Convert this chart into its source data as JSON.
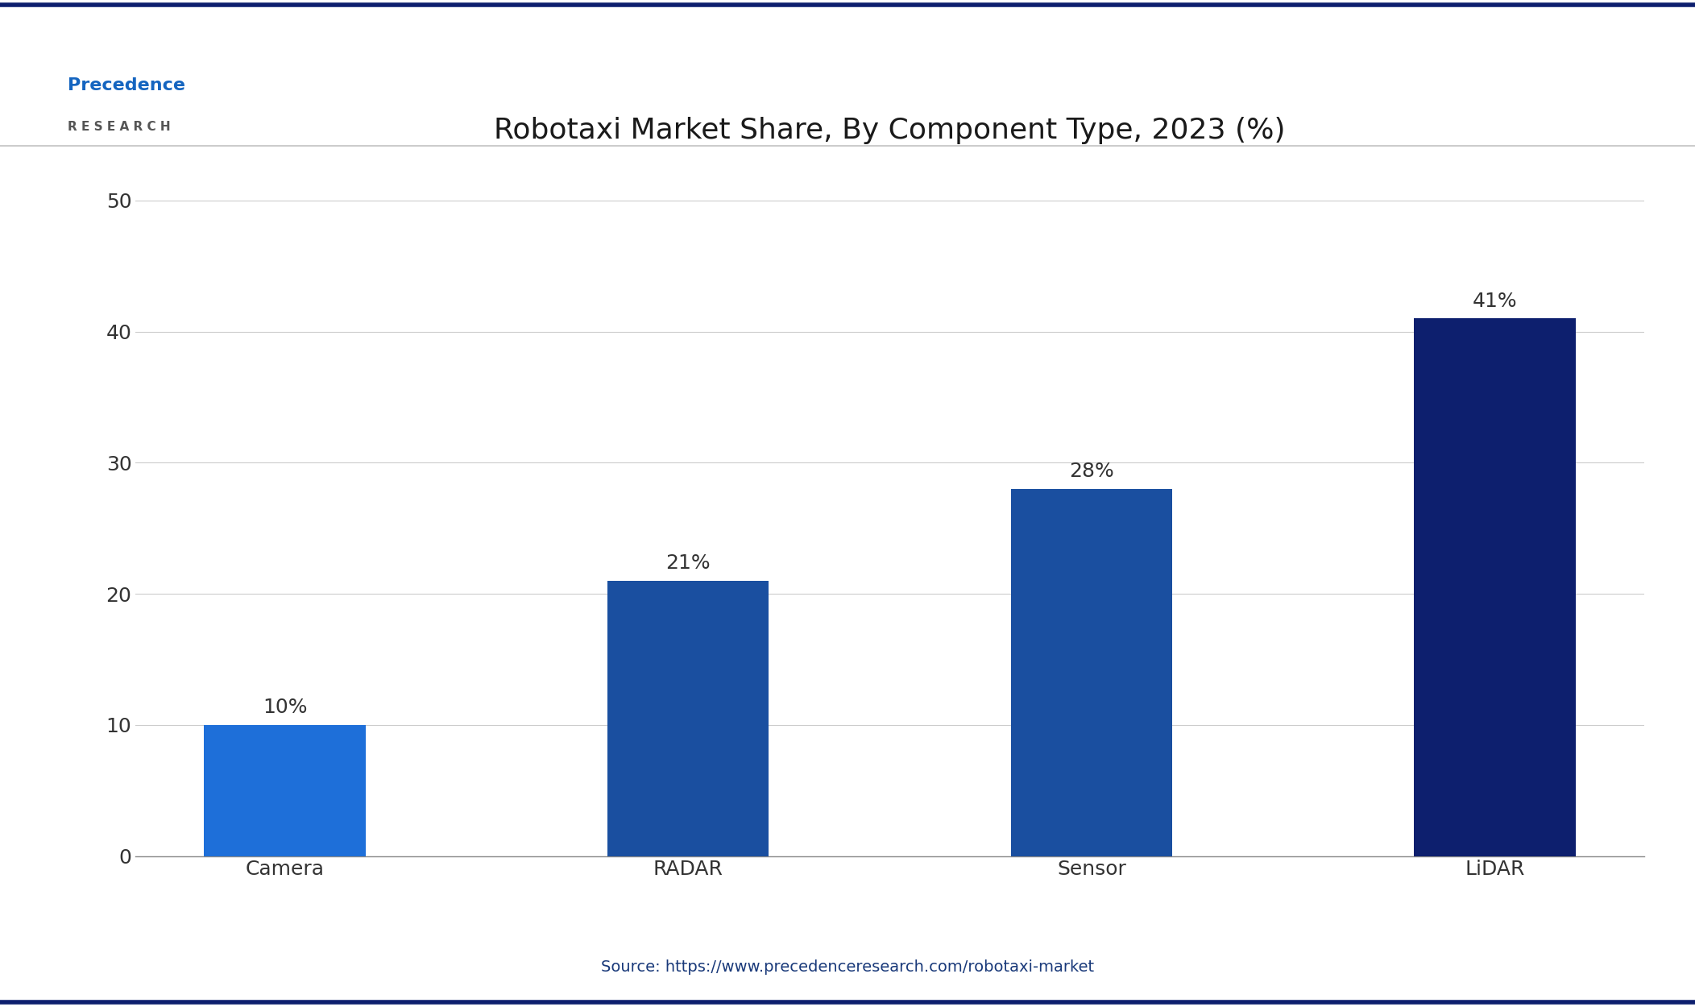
{
  "title": "Robotaxi Market Share, By Component Type, 2023 (%)",
  "categories": [
    "Camera",
    "RADAR",
    "Sensor",
    "LiDAR"
  ],
  "values": [
    10,
    21,
    28,
    41
  ],
  "bar_colors": [
    "#1E6FD9",
    "#1A4FA0",
    "#1A4FA0",
    "#0D1F6E"
  ],
  "label_texts": [
    "10%",
    "21%",
    "28%",
    "41%"
  ],
  "ylim": [
    0,
    53
  ],
  "yticks": [
    0,
    10,
    20,
    30,
    40,
    50
  ],
  "source_text": "Source: https://www.precedenceresearch.com/robotaxi-market",
  "background_color": "#FFFFFF",
  "border_color": "#0D1F6E",
  "title_color": "#1a1a1a",
  "tick_color": "#333333",
  "source_color": "#1A3A7A",
  "bar_label_color": "#333333",
  "label_fontsize": 18,
  "title_fontsize": 26,
  "tick_fontsize": 18,
  "source_fontsize": 14,
  "xtick_fontsize": 18
}
